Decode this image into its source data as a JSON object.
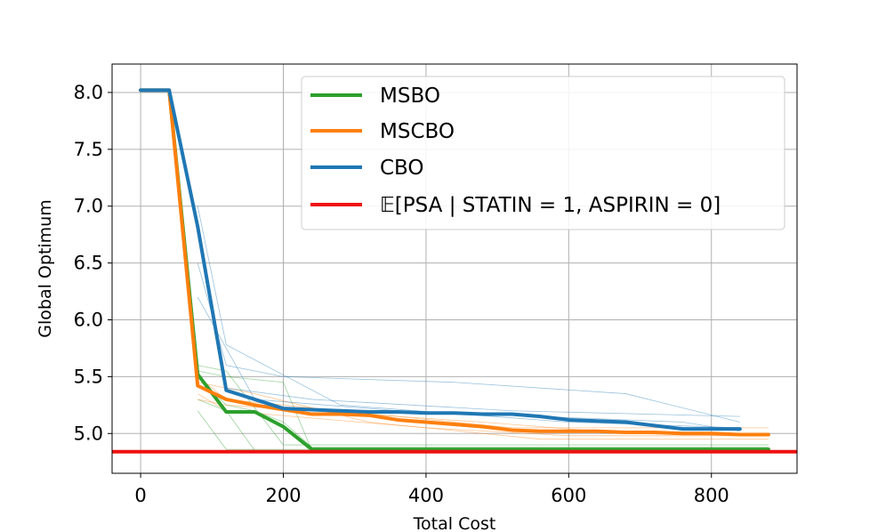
{
  "chart_data": {
    "type": "line",
    "title": "",
    "xlabel": "Total Cost",
    "ylabel": "Global Optimum",
    "xlim": [
      -40,
      920
    ],
    "ylim": [
      4.65,
      8.25
    ],
    "xticks": [
      0,
      200,
      400,
      600,
      800
    ],
    "xtick_labels": [
      "0",
      "200",
      "400",
      "600",
      "800"
    ],
    "yticks": [
      5.0,
      5.5,
      6.0,
      6.5,
      7.0,
      7.5,
      8.0
    ],
    "ytick_labels": [
      "5.0",
      "5.5",
      "6.0",
      "6.5",
      "7.0",
      "7.5",
      "8.0"
    ],
    "grid": true,
    "legend_position": "top-right",
    "series": [
      {
        "name": "MSBO",
        "color": "#2ca02c",
        "x": [
          0,
          40,
          80,
          120,
          160,
          200,
          240,
          880
        ],
        "y": [
          8.02,
          8.02,
          5.52,
          5.19,
          5.19,
          5.06,
          4.86,
          4.86
        ]
      },
      {
        "name": "MSCBO",
        "color": "#ff7f0e",
        "x": [
          0,
          40,
          80,
          120,
          160,
          200,
          240,
          280,
          320,
          360,
          400,
          440,
          480,
          520,
          560,
          600,
          640,
          680,
          720,
          760,
          800,
          840,
          880
        ],
        "y": [
          8.02,
          8.02,
          5.42,
          5.3,
          5.25,
          5.21,
          5.17,
          5.17,
          5.16,
          5.12,
          5.1,
          5.08,
          5.06,
          5.03,
          5.02,
          5.02,
          5.02,
          5.01,
          5.01,
          5.0,
          5.0,
          4.99,
          4.99
        ]
      },
      {
        "name": "CBO",
        "color": "#1f77b4",
        "x": [
          0,
          40,
          80,
          120,
          160,
          200,
          240,
          280,
          320,
          360,
          400,
          440,
          480,
          520,
          560,
          600,
          640,
          680,
          720,
          760,
          800,
          840
        ],
        "y": [
          8.02,
          8.02,
          6.82,
          5.38,
          5.3,
          5.22,
          5.21,
          5.2,
          5.19,
          5.19,
          5.18,
          5.18,
          5.17,
          5.17,
          5.15,
          5.12,
          5.11,
          5.1,
          5.07,
          5.04,
          5.04,
          5.04
        ]
      }
    ],
    "reference_line": {
      "name": "𝔼[PSA | STATIN = 1, ASPIRIN = 0]",
      "color": "#ee1111",
      "y": 4.84
    },
    "thin_runs": [
      {
        "color": "#2ca02c",
        "x": [
          80,
          120,
          160,
          200,
          240,
          880
        ],
        "y": [
          5.5,
          5.25,
          5.2,
          5.1,
          4.88,
          4.88
        ]
      },
      {
        "color": "#2ca02c",
        "x": [
          80,
          120,
          200,
          240,
          880
        ],
        "y": [
          5.55,
          5.5,
          5.45,
          4.85,
          4.85
        ]
      },
      {
        "color": "#2ca02c",
        "x": [
          80,
          120,
          160,
          880
        ],
        "y": [
          5.3,
          5.2,
          4.85,
          4.85
        ]
      },
      {
        "color": "#2ca02c",
        "x": [
          80,
          120,
          200,
          880
        ],
        "y": [
          5.6,
          5.55,
          4.9,
          4.9
        ]
      },
      {
        "color": "#2ca02c",
        "x": [
          80,
          120,
          880
        ],
        "y": [
          5.2,
          4.86,
          4.86
        ]
      },
      {
        "color": "#ff7f0e",
        "x": [
          80,
          120,
          200,
          360,
          520,
          880
        ],
        "y": [
          5.5,
          5.3,
          5.25,
          5.15,
          5.05,
          5.05
        ]
      },
      {
        "color": "#ff7f0e",
        "x": [
          80,
          120,
          240,
          480,
          680,
          880
        ],
        "y": [
          5.3,
          5.25,
          5.2,
          5.1,
          5.0,
          4.98
        ]
      },
      {
        "color": "#ff7f0e",
        "x": [
          80,
          160,
          320,
          560,
          880
        ],
        "y": [
          5.45,
          5.35,
          5.1,
          4.95,
          4.95
        ]
      },
      {
        "color": "#ff7f0e",
        "x": [
          80,
          120,
          400,
          600,
          880
        ],
        "y": [
          5.35,
          5.2,
          5.05,
          4.98,
          4.98
        ]
      },
      {
        "color": "#1f77b4",
        "x": [
          80,
          120,
          200,
          440,
          680,
          840
        ],
        "y": [
          6.5,
          5.6,
          5.5,
          5.45,
          5.35,
          5.1
        ]
      },
      {
        "color": "#1f77b4",
        "x": [
          80,
          120,
          240,
          520,
          840
        ],
        "y": [
          6.8,
          5.4,
          5.3,
          5.2,
          5.15
        ]
      },
      {
        "color": "#1f77b4",
        "x": [
          80,
          120,
          280,
          600,
          840
        ],
        "y": [
          7.0,
          5.78,
          5.25,
          5.1,
          5.05
        ]
      },
      {
        "color": "#1f77b4",
        "x": [
          80,
          160,
          360,
          760,
          840
        ],
        "y": [
          6.2,
          5.3,
          5.2,
          5.1,
          5.02
        ]
      }
    ]
  }
}
